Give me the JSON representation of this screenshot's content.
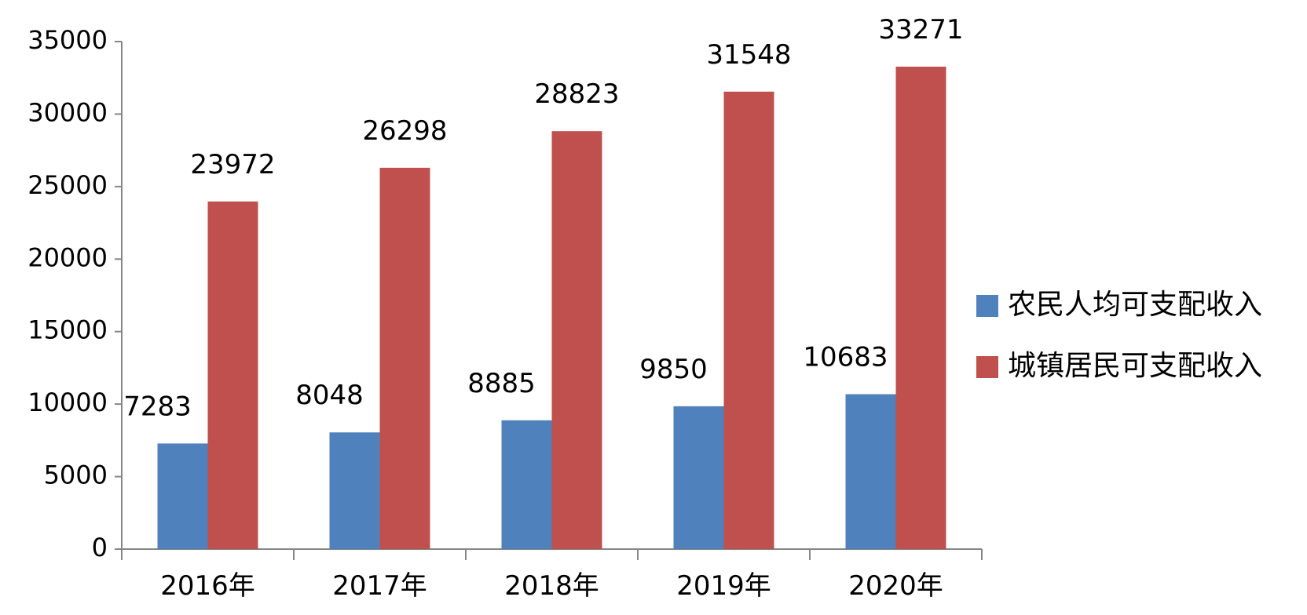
{
  "chart_data": {
    "type": "bar",
    "title": "",
    "xlabel": "",
    "ylabel": "",
    "categories": [
      "2016年",
      "2017年",
      "2018年",
      "2019年",
      "2020年"
    ],
    "series": [
      {
        "name": "农民人均可支配收入",
        "color": "#4F81BD",
        "values": [
          7283,
          8048,
          8885,
          9850,
          10683
        ]
      },
      {
        "name": "城镇居民可支配收入",
        "color": "#C0504D",
        "values": [
          23972,
          26298,
          28823,
          31548,
          33271
        ]
      }
    ],
    "ylim": [
      0,
      35000
    ],
    "yticks": [
      0,
      5000,
      10000,
      15000,
      20000,
      25000,
      30000,
      35000
    ],
    "grid": false,
    "legend_position": "right",
    "data_labels": true
  }
}
